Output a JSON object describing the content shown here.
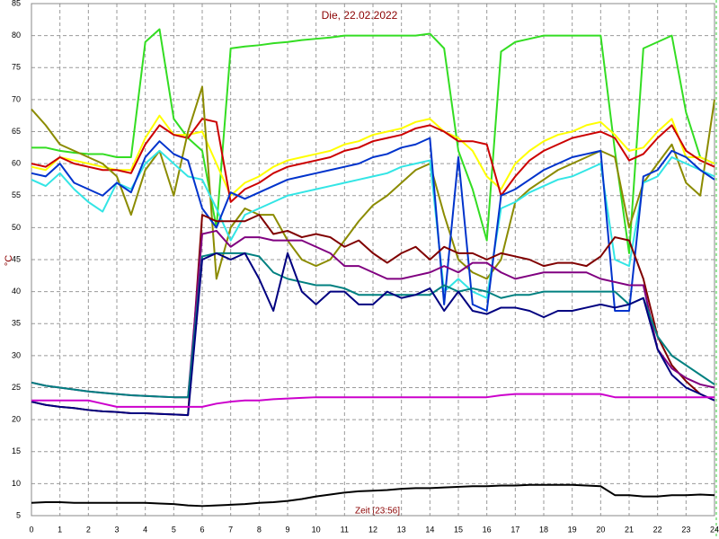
{
  "chart_data": {
    "type": "line",
    "title": "Die, 22.02.2022",
    "ylabel": "°C",
    "xlabel": "Zeit [23:56]",
    "xlim": [
      0,
      24
    ],
    "ylim": [
      5,
      85
    ],
    "xticks": [
      0,
      1,
      2,
      3,
      4,
      5,
      6,
      7,
      8,
      9,
      10,
      11,
      12,
      13,
      14,
      15,
      16,
      17,
      18,
      19,
      20,
      21,
      22,
      23,
      24
    ],
    "yticks": [
      5,
      10,
      15,
      20,
      25,
      30,
      35,
      40,
      45,
      50,
      55,
      60,
      65,
      70,
      75,
      80,
      85
    ],
    "grid": true,
    "x": [
      0,
      0.5,
      1,
      1.5,
      2,
      2.5,
      3,
      3.5,
      4,
      4.5,
      5,
      5.5,
      6,
      6.5,
      7,
      7.5,
      8,
      8.5,
      9,
      9.5,
      10,
      10.5,
      11,
      11.5,
      12,
      12.5,
      13,
      13.5,
      14,
      14.5,
      15,
      15.5,
      16,
      16.5,
      17,
      17.5,
      18,
      18.5,
      19,
      19.5,
      20,
      20.5,
      21,
      21.5,
      22,
      22.5,
      23,
      23.5,
      24
    ],
    "series": [
      {
        "color": "#33dd22",
        "values": [
          62.5,
          62.5,
          62,
          61.7,
          61.5,
          61.5,
          61,
          61,
          79,
          81,
          67,
          64,
          62,
          50,
          78,
          78.3,
          78.5,
          78.8,
          79,
          79.3,
          79.5,
          79.7,
          80,
          80,
          80,
          80,
          80,
          80,
          80.3,
          78,
          62,
          56,
          48,
          77.5,
          79,
          79.5,
          80,
          80,
          80,
          80,
          80,
          62,
          46,
          78,
          79,
          80,
          68,
          61,
          60
        ]
      },
      {
        "color": "#ffff00",
        "values": [
          59.5,
          59,
          61,
          60.5,
          60,
          59.5,
          59,
          59,
          64,
          67.5,
          64.5,
          64.5,
          65,
          60,
          55,
          57,
          58,
          59.5,
          60.5,
          61,
          61.5,
          62,
          63,
          63.5,
          64.5,
          65,
          65.5,
          66.5,
          67,
          65,
          64,
          62,
          58,
          56,
          60,
          62,
          63.5,
          64.5,
          65,
          66,
          66.5,
          64.5,
          62,
          62.5,
          65,
          67,
          61,
          61,
          60
        ]
      },
      {
        "color": "#cc0000",
        "values": [
          60,
          59.5,
          61,
          60,
          59.5,
          59,
          59,
          58.5,
          63,
          66,
          64.5,
          64,
          67,
          66.5,
          54,
          56,
          57,
          58.5,
          59.5,
          60,
          60.5,
          61,
          62,
          62.5,
          63.5,
          64,
          64.5,
          65.5,
          66,
          65,
          63.5,
          63.5,
          63,
          55,
          58,
          60.5,
          62,
          63,
          64,
          64.5,
          65,
          64,
          60.5,
          61.5,
          64,
          66,
          62,
          60.5,
          59.5
        ]
      },
      {
        "color": "#8b8b00",
        "values": [
          68.5,
          66,
          63,
          62,
          61,
          60,
          58,
          52,
          59,
          62,
          55,
          65,
          72,
          42,
          50,
          53,
          52,
          52,
          48,
          45,
          44,
          45,
          48,
          51,
          53.5,
          55,
          57,
          59,
          60,
          52,
          45,
          43,
          42,
          45,
          54,
          56,
          57.5,
          59,
          60,
          61,
          62,
          61,
          50,
          57,
          60,
          63,
          57,
          55,
          70
        ]
      },
      {
        "color": "#33e5e5",
        "values": [
          57.5,
          56.5,
          58.5,
          56,
          54,
          52.5,
          57,
          56,
          60,
          62,
          60,
          58,
          57.5,
          53,
          48,
          52,
          53,
          54,
          55,
          55.5,
          56,
          56.5,
          57,
          57.5,
          58,
          58.5,
          59.5,
          60,
          60.5,
          40,
          42,
          40,
          39,
          53,
          54,
          55.5,
          56.5,
          57.5,
          58,
          59,
          60,
          45,
          44,
          57,
          58,
          61,
          60,
          59,
          58
        ]
      },
      {
        "color": "#0033cc",
        "values": [
          58.5,
          58,
          60,
          57,
          56,
          55,
          57,
          55.5,
          61,
          63.5,
          61.5,
          60.5,
          53,
          50,
          55.5,
          54.5,
          55.5,
          56.5,
          57.5,
          58,
          58.5,
          59,
          59.5,
          60,
          61,
          61.5,
          62.5,
          63,
          64,
          38,
          61,
          38,
          37,
          55,
          56,
          57.5,
          59,
          60,
          61,
          61.5,
          62,
          37,
          37,
          58,
          59,
          62,
          61,
          59,
          57.5
        ]
      },
      {
        "color": "#800000",
        "values": [
          22.8,
          22.3,
          22,
          21.8,
          21.5,
          21.3,
          21.2,
          21,
          21,
          20.9,
          20.8,
          20.7,
          52,
          51,
          51,
          51,
          52,
          49,
          49.5,
          48.5,
          49,
          48.5,
          47,
          48,
          46,
          44.5,
          46,
          47,
          45,
          47,
          46,
          46,
          45,
          46,
          45.5,
          45,
          44,
          44.5,
          44.5,
          44,
          45.5,
          48.5,
          48,
          42,
          33,
          28.5,
          26,
          24,
          23
        ]
      },
      {
        "color": "#800080",
        "values": [
          25.8,
          25.3,
          25,
          24.7,
          24.4,
          24.2,
          24,
          23.8,
          23.7,
          23.6,
          23.5,
          23.5,
          49,
          49.5,
          47,
          48.5,
          48.5,
          48,
          48,
          48,
          47,
          46,
          44,
          44,
          43,
          42,
          42,
          42.5,
          43,
          44,
          43,
          44.5,
          44.5,
          43,
          42,
          42.5,
          43,
          43,
          43,
          43,
          42,
          41.5,
          41,
          41,
          31,
          28,
          26.5,
          25.5,
          25
        ]
      },
      {
        "color": "#008080",
        "values": [
          25.8,
          25.3,
          25,
          24.7,
          24.4,
          24.2,
          24,
          23.8,
          23.7,
          23.6,
          23.5,
          23.5,
          45.5,
          46,
          46,
          46,
          45.5,
          43,
          42,
          41.5,
          41,
          41,
          40.5,
          39.5,
          39.5,
          39.5,
          39.5,
          39.5,
          39.5,
          41,
          40,
          40.5,
          40,
          39,
          39.5,
          39.5,
          40,
          40,
          40,
          40,
          40,
          40,
          38,
          39,
          33,
          30,
          28.5,
          27,
          25.5
        ]
      },
      {
        "color": "#000080",
        "values": [
          22.8,
          22.3,
          22,
          21.8,
          21.5,
          21.3,
          21.2,
          21,
          21,
          20.9,
          20.8,
          20.7,
          45,
          46,
          45,
          46,
          42,
          37,
          46,
          40,
          38,
          40,
          40,
          38,
          38,
          40,
          39,
          39.5,
          40.5,
          37,
          40,
          37,
          36.5,
          37.5,
          37.5,
          37,
          36,
          37,
          37,
          37.5,
          38,
          37.5,
          38,
          39,
          31,
          27,
          25,
          24,
          23
        ]
      },
      {
        "color": "#cc00cc",
        "values": [
          23,
          23,
          23,
          23,
          23,
          22.5,
          22,
          22,
          22,
          22,
          22,
          22,
          22,
          22.5,
          22.8,
          23,
          23,
          23.2,
          23.3,
          23.4,
          23.5,
          23.5,
          23.5,
          23.5,
          23.5,
          23.5,
          23.5,
          23.5,
          23.5,
          23.5,
          23.5,
          23.5,
          23.5,
          23.8,
          24,
          24,
          24,
          24,
          24,
          24,
          24,
          23.5,
          23.5,
          23.5,
          23.5,
          23.5,
          23.5,
          23.5,
          23.5
        ]
      },
      {
        "color": "#000000",
        "values": [
          7,
          7.1,
          7.1,
          7,
          7,
          7,
          7,
          7,
          7,
          6.9,
          6.8,
          6.6,
          6.5,
          6.6,
          6.7,
          6.8,
          7,
          7.1,
          7.3,
          7.6,
          8,
          8.3,
          8.6,
          8.8,
          8.9,
          9,
          9.2,
          9.3,
          9.3,
          9.4,
          9.5,
          9.6,
          9.6,
          9.7,
          9.7,
          9.8,
          9.8,
          9.8,
          9.8,
          9.7,
          9.6,
          8.2,
          8.2,
          8,
          8,
          8.2,
          8.2,
          8.3,
          8.2
        ]
      }
    ]
  }
}
